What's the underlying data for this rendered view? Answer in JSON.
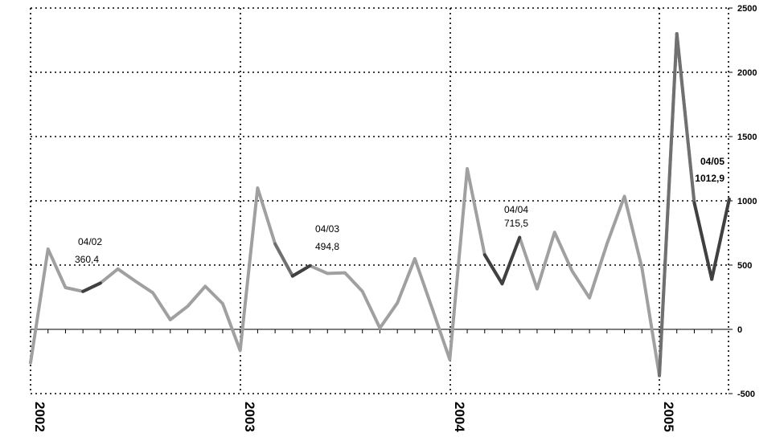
{
  "chart_data": {
    "type": "line",
    "x_labels": [
      "2002",
      "2003",
      "2004",
      "2005"
    ],
    "y_axis": {
      "position": "right",
      "ylim": [
        -500,
        2500
      ],
      "ticks": [
        2500,
        2000,
        1500,
        1000,
        500,
        0,
        -500
      ],
      "tick_labels": [
        "2500",
        "2000",
        "1500",
        "1000",
        "500",
        "0",
        "-500"
      ]
    },
    "grid": "dotted",
    "series": [
      {
        "color_default": "#a0a0a0",
        "color_highlight_dark": "#404040",
        "color_highlight_mid": "#707070",
        "values": [
          -260,
          625,
          325,
          295,
          360,
          470,
          375,
          285,
          75,
          180,
          335,
          200,
          -165,
          1100,
          665,
          415,
          495,
          435,
          440,
          295,
          10,
          205,
          550,
          160,
          -235,
          1250,
          580,
          355,
          715,
          315,
          755,
          455,
          245,
          665,
          1035,
          480,
          -360,
          2300,
          985,
          390,
          1013
        ],
        "highlight_dark_segments": [
          [
            3,
            4
          ],
          [
            15,
            16
          ],
          [
            26,
            28
          ],
          [
            38,
            40
          ]
        ],
        "highlight_mid_segments": [
          [
            14,
            15
          ],
          [
            36,
            38
          ]
        ]
      }
    ],
    "annotations": [
      {
        "date": "04/02",
        "value": "360,4",
        "bold": false
      },
      {
        "date": "04/03",
        "value": "494,8",
        "bold": false
      },
      {
        "date": "04/04",
        "value": "715,5",
        "bold": false
      },
      {
        "date": "04/05",
        "value": "1012,9",
        "bold": true
      }
    ]
  }
}
